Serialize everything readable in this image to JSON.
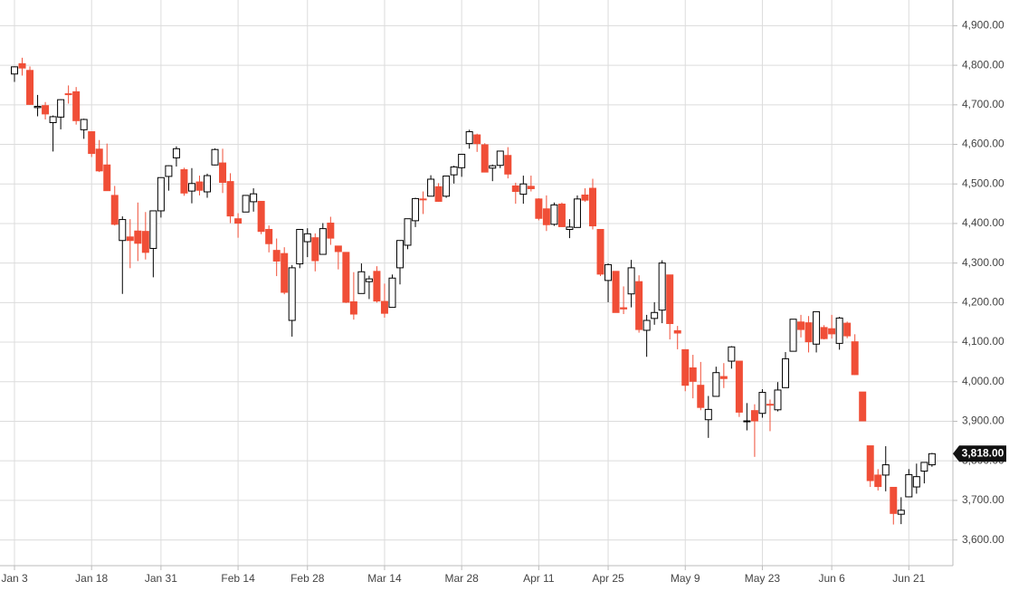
{
  "chart_data": {
    "type": "candlestick",
    "categories": [
      "Jan 3",
      null,
      null,
      null,
      null,
      null,
      null,
      null,
      null,
      null,
      "Jan 18",
      null,
      null,
      null,
      null,
      null,
      null,
      null,
      null,
      "Jan 31",
      null,
      null,
      null,
      null,
      null,
      null,
      null,
      null,
      null,
      "Feb 14",
      null,
      null,
      null,
      null,
      null,
      null,
      null,
      null,
      "Feb 28",
      null,
      null,
      null,
      null,
      null,
      null,
      null,
      null,
      null,
      "Mar 14",
      null,
      null,
      null,
      null,
      null,
      null,
      null,
      null,
      null,
      "Mar 28",
      null,
      null,
      null,
      null,
      null,
      null,
      null,
      null,
      null,
      "Apr 11",
      null,
      null,
      null,
      null,
      null,
      null,
      null,
      null,
      "Apr 25",
      null,
      null,
      null,
      null,
      null,
      null,
      null,
      null,
      null,
      "May 9",
      null,
      null,
      null,
      null,
      null,
      null,
      null,
      null,
      null,
      "May 23",
      null,
      null,
      null,
      null,
      null,
      null,
      null,
      null,
      "Jun 6",
      null,
      null,
      null,
      null,
      null,
      null,
      null,
      null,
      null,
      "Jun 21",
      null,
      null,
      null
    ],
    "open": [
      4778,
      4804,
      4787,
      4693,
      4698,
      4655,
      4669,
      4728,
      4733,
      4637,
      4632,
      4588,
      4548,
      4471,
      4357,
      4366,
      4381,
      4380,
      4337,
      4432,
      4519,
      4566,
      4536,
      4482,
      4505,
      4480,
      4548,
      4553,
      4506,
      4412,
      4429,
      4455,
      4456,
      4385,
      4332,
      4324,
      4155,
      4298,
      4354,
      4364,
      4322,
      4401,
      4343,
      4327,
      4202,
      4223,
      4253,
      4279,
      4203,
      4188,
      4288,
      4345,
      4407,
      4462,
      4469,
      4493,
      4469,
      4523,
      4541,
      4602,
      4624,
      4599,
      4540,
      4547,
      4572,
      4495,
      4474,
      4494,
      4462,
      4437,
      4398,
      4449,
      4385,
      4390,
      4472,
      4489,
      4385,
      4256,
      4279,
      4187,
      4222,
      4253,
      4130,
      4160,
      4181,
      4270,
      4129,
      4081,
      4035,
      3991,
      3904,
      3963,
      4013,
      4052,
      4052,
      3900,
      3927,
      3920,
      3943,
      3929,
      3985,
      4077,
      4151,
      4149,
      4095,
      4137,
      4134,
      4097,
      4148,
      4101,
      3974,
      3838,
      3764,
      3764,
      3733,
      3665,
      3709,
      3734,
      3774,
      3790
    ],
    "high": [
      4797,
      4819,
      4797,
      4725,
      4707,
      4673,
      4714,
      4749,
      4745,
      4665,
      4632,
      4611,
      4602,
      4495,
      4418,
      4411,
      4453,
      4429,
      4432,
      4516,
      4547,
      4595,
      4541,
      4540,
      4521,
      4526,
      4590,
      4589,
      4527,
      4426,
      4472,
      4489,
      4456,
      4395,
      4362,
      4340,
      4295,
      4385,
      4388,
      4375,
      4401,
      4417,
      4343,
      4327,
      4277,
      4299,
      4268,
      4292,
      4248,
      4271,
      4357,
      4412,
      4465,
      4481,
      4522,
      4502,
      4521,
      4546,
      4575,
      4637,
      4627,
      4603,
      4549,
      4583,
      4593,
      4503,
      4521,
      4521,
      4464,
      4471,
      4453,
      4453,
      4411,
      4471,
      4489,
      4513,
      4386,
      4299,
      4279,
      4241,
      4308,
      4269,
      4169,
      4201,
      4307,
      4270,
      4141,
      4082,
      4068,
      4050,
      3964,
      4038,
      4047,
      4090,
      4052,
      3946,
      3943,
      3981,
      3955,
      3999,
      4075,
      4158,
      4169,
      4166,
      4177,
      4143,
      4169,
      4164,
      4152,
      4120,
      3974,
      3838,
      3779,
      3837,
      3733,
      3708,
      3779,
      3793,
      3796,
      3820
    ],
    "low": [
      4758,
      4774,
      4700,
      4671,
      4663,
      4582,
      4638,
      4703,
      4650,
      4614,
      4568,
      4530,
      4483,
      4395,
      4222,
      4287,
      4305,
      4309,
      4264,
      4415,
      4483,
      4544,
      4470,
      4451,
      4471,
      4465,
      4547,
      4477,
      4401,
      4364,
      4429,
      4430,
      4373,
      4327,
      4267,
      4221,
      4114,
      4287,
      4315,
      4279,
      4322,
      4346,
      4284,
      4199,
      4157,
      4223,
      4209,
      4200,
      4162,
      4188,
      4246,
      4335,
      4391,
      4424,
      4469,
      4455,
      4465,
      4501,
      4518,
      4589,
      4581,
      4530,
      4507,
      4540,
      4514,
      4450,
      4450,
      4481,
      4408,
      4381,
      4394,
      4392,
      4363,
      4390,
      4455,
      4385,
      4267,
      4201,
      4176,
      4171,
      4188,
      4124,
      4063,
      4144,
      4148,
      4107,
      4082,
      3976,
      3958,
      3928,
      3858,
      3963,
      3984,
      4033,
      3911,
      3877,
      3810,
      3909,
      3875,
      3925,
      3985,
      4077,
      4112,
      4074,
      4074,
      4107,
      4109,
      4081,
      4110,
      4017,
      3900,
      3734,
      3725,
      3723,
      3639,
      3640,
      3709,
      3717,
      3743,
      3785
    ],
    "close": [
      4796,
      4793,
      4701,
      4696,
      4677,
      4670,
      4713,
      4726,
      4660,
      4663,
      4577,
      4533,
      4483,
      4398,
      4410,
      4357,
      4350,
      4327,
      4432,
      4516,
      4546,
      4589,
      4477,
      4501,
      4484,
      4521,
      4587,
      4504,
      4419,
      4401,
      4471,
      4475,
      4380,
      4349,
      4305,
      4226,
      4288,
      4385,
      4374,
      4306,
      4387,
      4363,
      4329,
      4201,
      4171,
      4278,
      4260,
      4204,
      4173,
      4262,
      4357,
      4412,
      4463,
      4461,
      4512,
      4456,
      4520,
      4543,
      4575,
      4632,
      4602,
      4530,
      4546,
      4583,
      4525,
      4481,
      4500,
      4488,
      4413,
      4397,
      4447,
      4392,
      4391,
      4462,
      4459,
      4394,
      4272,
      4296,
      4175,
      4184,
      4288,
      4132,
      4155,
      4175,
      4300,
      4147,
      4123,
      3991,
      4001,
      3935,
      3930,
      4023,
      4008,
      4088,
      3923,
      3901,
      3901,
      3973,
      3941,
      3979,
      4058,
      4158,
      4132,
      4101,
      4177,
      4109,
      4121,
      4161,
      4116,
      4018,
      3901,
      3750,
      3735,
      3790,
      3667,
      3675,
      3765,
      3760,
      3796,
      3818
    ],
    "up_color": "#ffffff",
    "down_color": "#f04e37",
    "ylim": [
      3535,
      4965
    ],
    "yticks": [
      {
        "value": 3600,
        "label": "3,600.00"
      },
      {
        "value": 3700,
        "label": "3,700.00"
      },
      {
        "value": 3800,
        "label": "3,800.00"
      },
      {
        "value": 3900,
        "label": "3,900.00"
      },
      {
        "value": 4000,
        "label": "4,000.00"
      },
      {
        "value": 4100,
        "label": "4,100.00"
      },
      {
        "value": 4200,
        "label": "4,200.00"
      },
      {
        "value": 4300,
        "label": "4,300.00"
      },
      {
        "value": 4400,
        "label": "4,400.00"
      },
      {
        "value": 4500,
        "label": "4,500.00"
      },
      {
        "value": 4600,
        "label": "4,600.00"
      },
      {
        "value": 4700,
        "label": "4,700.00"
      },
      {
        "value": 4800,
        "label": "4,800.00"
      },
      {
        "value": 4900,
        "label": "4,900.00"
      }
    ],
    "last_price": {
      "value": 3818,
      "label": "3,818.00"
    },
    "grid": true
  }
}
